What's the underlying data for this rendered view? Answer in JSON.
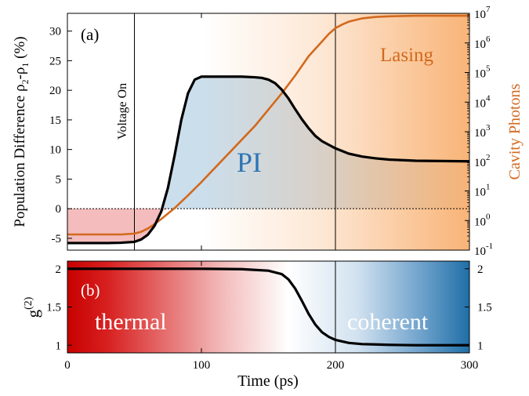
{
  "chart_data": [
    {
      "type": "line",
      "panel_label": "(a)",
      "xlim": [
        0,
        300
      ],
      "ylim": [
        -7,
        33
      ],
      "y_ticks": [
        -5,
        0,
        5,
        10,
        15,
        20,
        25,
        30
      ],
      "ylabel": "Population Difference",
      "ylabel_math": {
        "rho": "ρ",
        "sub2": "2",
        "minus": "-",
        "sub1": "1",
        "unit": " (%)"
      },
      "y2label": "Cavity Photons",
      "y2_scale": "log",
      "y2lim_exp": [
        -1,
        7
      ],
      "y2_ticks": [
        {
          "base": "10",
          "exp": "-1"
        },
        {
          "base": "10",
          "exp": "0"
        },
        {
          "base": "10",
          "exp": "1"
        },
        {
          "base": "10",
          "exp": "2"
        },
        {
          "base": "10",
          "exp": "3"
        },
        {
          "base": "10",
          "exp": "4"
        },
        {
          "base": "10",
          "exp": "5"
        },
        {
          "base": "10",
          "exp": "6"
        },
        {
          "base": "10",
          "exp": "7"
        }
      ],
      "annotations": {
        "voltage_on": "Voltage On",
        "pi": "PI",
        "lasing": "Lasing"
      },
      "vlines_x": [
        50,
        200
      ],
      "zero_line": true,
      "series": [
        {
          "axis": "left",
          "color": "#000000",
          "x": [
            0,
            10,
            20,
            30,
            40,
            50,
            55,
            60,
            65,
            70,
            75,
            80,
            85,
            90,
            95,
            100,
            110,
            120,
            130,
            140,
            145,
            150,
            155,
            160,
            165,
            170,
            175,
            180,
            185,
            190,
            195,
            200,
            210,
            220,
            230,
            240,
            260,
            280,
            300
          ],
          "y": [
            -5.8,
            -5.8,
            -5.8,
            -5.8,
            -5.75,
            -5.6,
            -5.2,
            -4.4,
            -2.9,
            -0.5,
            3.5,
            9.0,
            15.0,
            19.5,
            21.8,
            22.3,
            22.3,
            22.3,
            22.3,
            22.2,
            22.1,
            21.8,
            21.2,
            20.1,
            18.6,
            16.8,
            15.1,
            13.6,
            12.3,
            11.4,
            10.8,
            10.2,
            9.3,
            8.8,
            8.5,
            8.3,
            8.1,
            8.05,
            8.0
          ]
        },
        {
          "axis": "right",
          "color": "#D2691E",
          "x": [
            0,
            20,
            40,
            50,
            55,
            60,
            65,
            70,
            80,
            90,
            100,
            120,
            140,
            160,
            170,
            180,
            190,
            195,
            200,
            205,
            210,
            220,
            230,
            240,
            260,
            280,
            300
          ],
          "y_log10": [
            -0.47,
            -0.47,
            -0.47,
            -0.44,
            -0.38,
            -0.27,
            -0.12,
            0.05,
            0.42,
            0.85,
            1.3,
            2.25,
            3.2,
            4.3,
            4.9,
            5.55,
            6.05,
            6.3,
            6.5,
            6.62,
            6.72,
            6.83,
            6.88,
            6.9,
            6.92,
            6.92,
            6.92
          ]
        }
      ],
      "shading": {
        "negative_region": {
          "x": [
            0,
            75
          ],
          "y": [
            -7,
            0
          ],
          "color": "#F0A0A0"
        },
        "pi_region_color": "#A8C8E0",
        "lasing_gradient_from_x": 100,
        "lasing_color": "#F8B070"
      }
    },
    {
      "type": "line",
      "panel_label": "(b)",
      "xlim": [
        0,
        300
      ],
      "x_ticks": [
        0,
        100,
        200,
        300
      ],
      "xlabel": "Time (ps)",
      "ylim": [
        0.9,
        2.1
      ],
      "y_ticks": [
        "1",
        "1.5",
        "2"
      ],
      "y_tick_values": [
        1,
        1.5,
        2
      ],
      "ylabel": "g",
      "ylabel_sup": "(2)",
      "annotations": {
        "thermal": "thermal",
        "coherent": "coherent"
      },
      "vline_x": 200,
      "background_gradient": {
        "start": "#C80000",
        "middle": "#FFFFFF",
        "end": "#1F6FA8"
      },
      "series": [
        {
          "color": "#000000",
          "x": [
            0,
            50,
            100,
            130,
            150,
            160,
            165,
            170,
            175,
            180,
            185,
            190,
            195,
            200,
            210,
            220,
            230,
            240,
            260,
            300
          ],
          "y": [
            2.0,
            2.0,
            2.0,
            1.995,
            1.975,
            1.93,
            1.86,
            1.74,
            1.58,
            1.41,
            1.27,
            1.17,
            1.11,
            1.07,
            1.03,
            1.015,
            1.01,
            1.005,
            1.0,
            1.0
          ]
        }
      ]
    }
  ]
}
